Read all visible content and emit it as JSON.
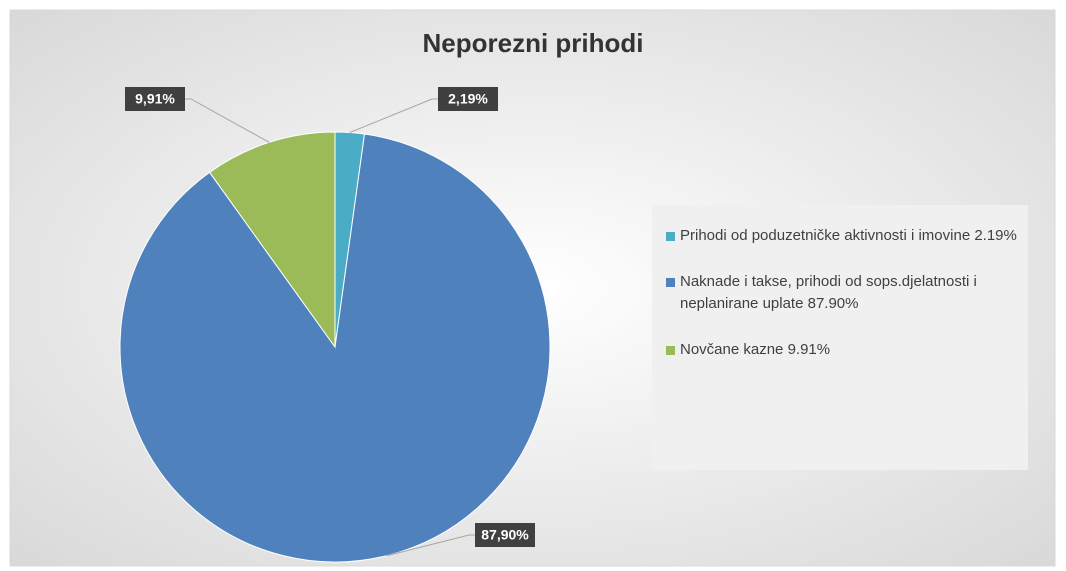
{
  "chart_data": {
    "type": "pie",
    "title": "Neporezni prihodi",
    "categories": [
      "Prihodi od poduzetničke aktivnosti i imovine 2.19%",
      "Naknade i takse, prihodi od sops.djelatnosti i neplanirane uplate  87.90%",
      "Novčane kazne  9.91%"
    ],
    "values": [
      2.19,
      87.9,
      9.91
    ],
    "value_labels": [
      "2,19%",
      "87,90%",
      "9,91%"
    ],
    "colors": [
      "#4bacc6",
      "#4f81bd",
      "#9bbb59"
    ],
    "legend": "right"
  }
}
